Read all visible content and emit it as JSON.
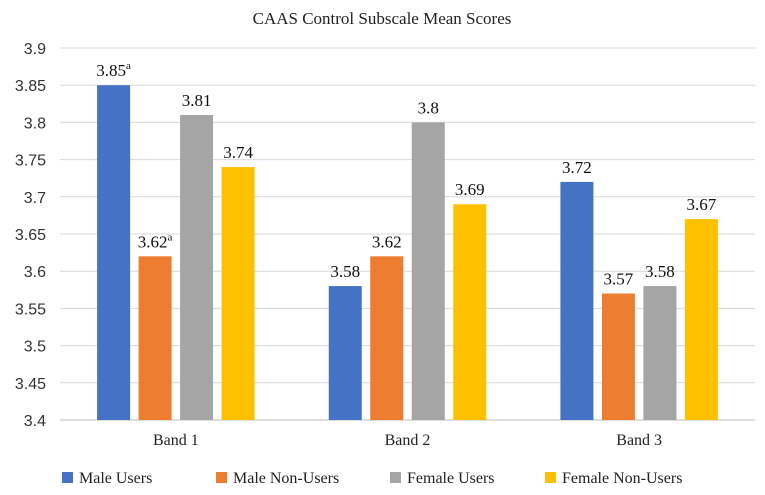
{
  "chart_data": {
    "type": "bar",
    "title": "CAAS Control Subscale Mean Scores",
    "categories": [
      "Band 1",
      "Band 2",
      "Band 3"
    ],
    "ylim": [
      3.4,
      3.9
    ],
    "ytick_step": 0.05,
    "yticks": [
      "3.4",
      "3.45",
      "3.5",
      "3.55",
      "3.6",
      "3.65",
      "3.7",
      "3.75",
      "3.8",
      "3.85",
      "3.9"
    ],
    "grid": true,
    "legend_position": "bottom",
    "series": [
      {
        "name": "Male Users",
        "color": "#4472C4",
        "values": [
          3.85,
          3.58,
          3.72
        ],
        "labels": [
          "3.85",
          "3.58",
          "3.72"
        ],
        "superscripts": [
          "a",
          "",
          ""
        ]
      },
      {
        "name": "Male Non-Users",
        "color": "#ED7D31",
        "values": [
          3.62,
          3.62,
          3.57
        ],
        "labels": [
          "3.62",
          "3.62",
          "3.57"
        ],
        "superscripts": [
          "a",
          "",
          ""
        ]
      },
      {
        "name": "Female Users",
        "color": "#A5A5A5",
        "values": [
          3.81,
          3.8,
          3.58
        ],
        "labels": [
          "3.81",
          "3.8",
          "3.58"
        ],
        "superscripts": [
          "",
          "",
          ""
        ]
      },
      {
        "name": "Female Non-Users",
        "color": "#FFC000",
        "values": [
          3.74,
          3.69,
          3.67
        ],
        "labels": [
          "3.74",
          "3.69",
          "3.67"
        ],
        "superscripts": [
          "",
          "",
          ""
        ]
      }
    ]
  }
}
